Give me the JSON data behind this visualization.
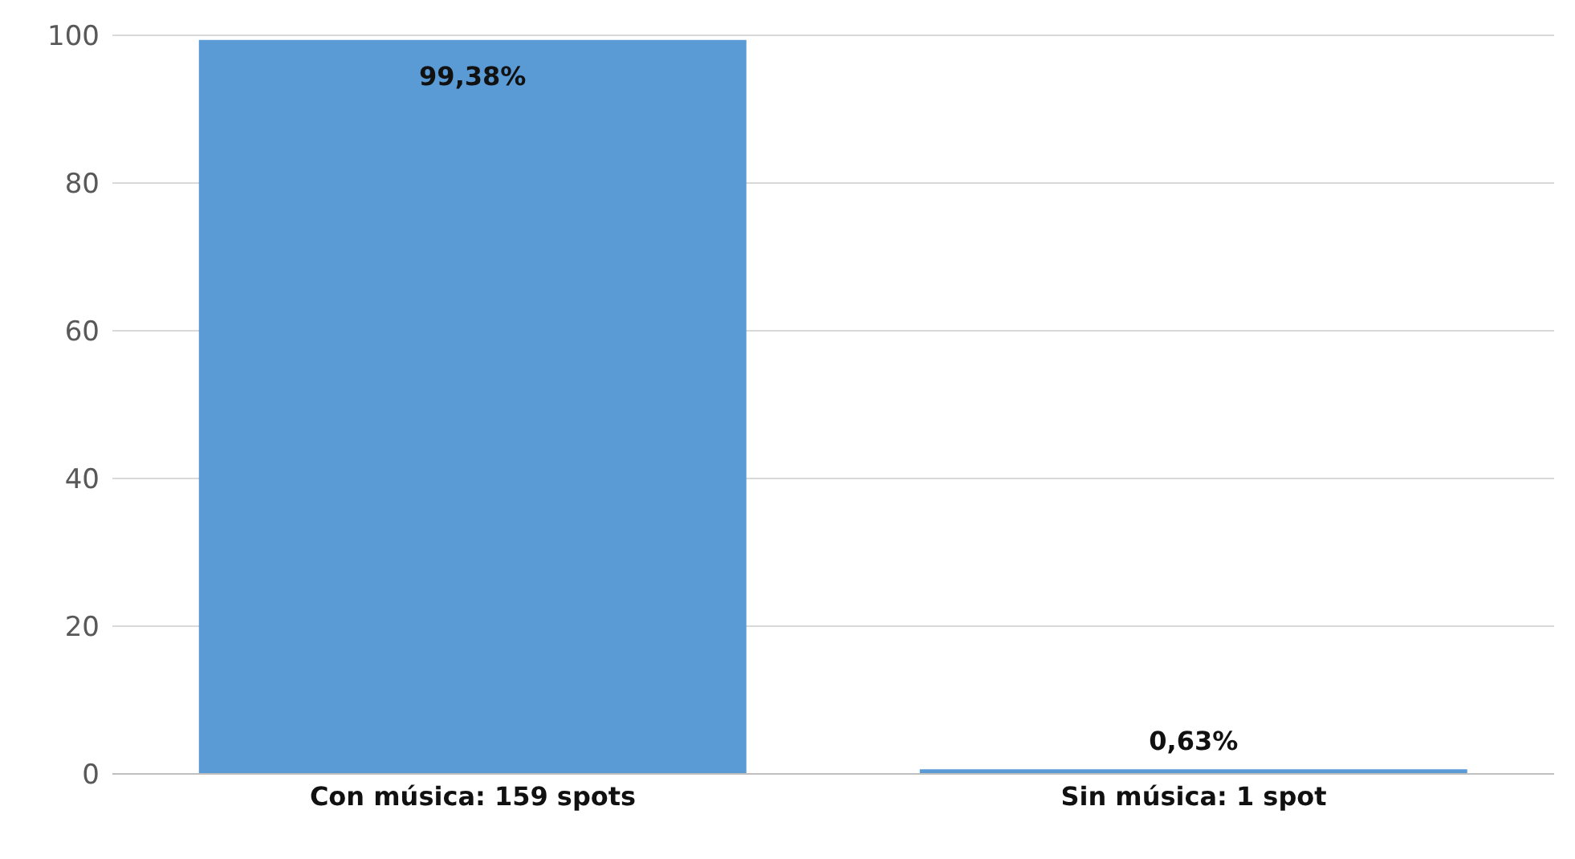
{
  "chart_data": {
    "type": "bar",
    "categories": [
      "Con música: 159 spots",
      "Sin música: 1 spot"
    ],
    "values": [
      99.38,
      0.63
    ],
    "value_labels": [
      "99,38%",
      "0,63%"
    ],
    "color": "#5b9bd5",
    "ylim": [
      0,
      100
    ],
    "yticks": [
      0,
      20,
      40,
      60,
      80,
      100
    ],
    "grid": "y"
  }
}
